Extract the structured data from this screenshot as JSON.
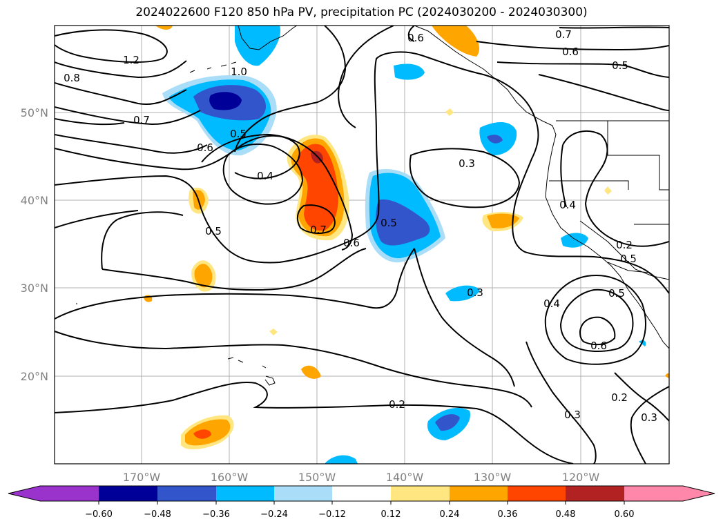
{
  "title": "2024022600 F120 850 hPa PV, precipitation PC (2024030200 - 2024030300)",
  "map": {
    "lat_labels": [
      "50°N",
      "40°N",
      "30°N",
      "20°N"
    ],
    "lon_labels": [
      "170°W",
      "160°W",
      "150°W",
      "140°W",
      "130°W",
      "120°W"
    ],
    "contour_labels": [
      "1.2",
      "0.8",
      "1.0",
      "0.7",
      "0.6",
      "0.5",
      "0.4",
      "0.7",
      "0.6",
      "0.5",
      "0.7",
      "0.6",
      "0.5",
      "0.3",
      "0.4",
      "0.6",
      "0.3",
      "0.2",
      "0.5",
      "0.4",
      "0.5",
      "0.6",
      "0.2",
      "0.3",
      "0.2",
      "0.3",
      "0.5"
    ]
  },
  "colorbar": {
    "ticks": [
      "−0.60",
      "−0.48",
      "−0.36",
      "−0.24",
      "−0.12",
      "0.12",
      "0.24",
      "0.36",
      "0.48",
      "0.60"
    ],
    "colors": [
      "#9933cc",
      "#000099",
      "#3355cc",
      "#00bbff",
      "#aaddf8",
      "#ffffff",
      "#ffe680",
      "#ffa500",
      "#ff4500",
      "#b22222",
      "#ff88aa"
    ]
  }
}
